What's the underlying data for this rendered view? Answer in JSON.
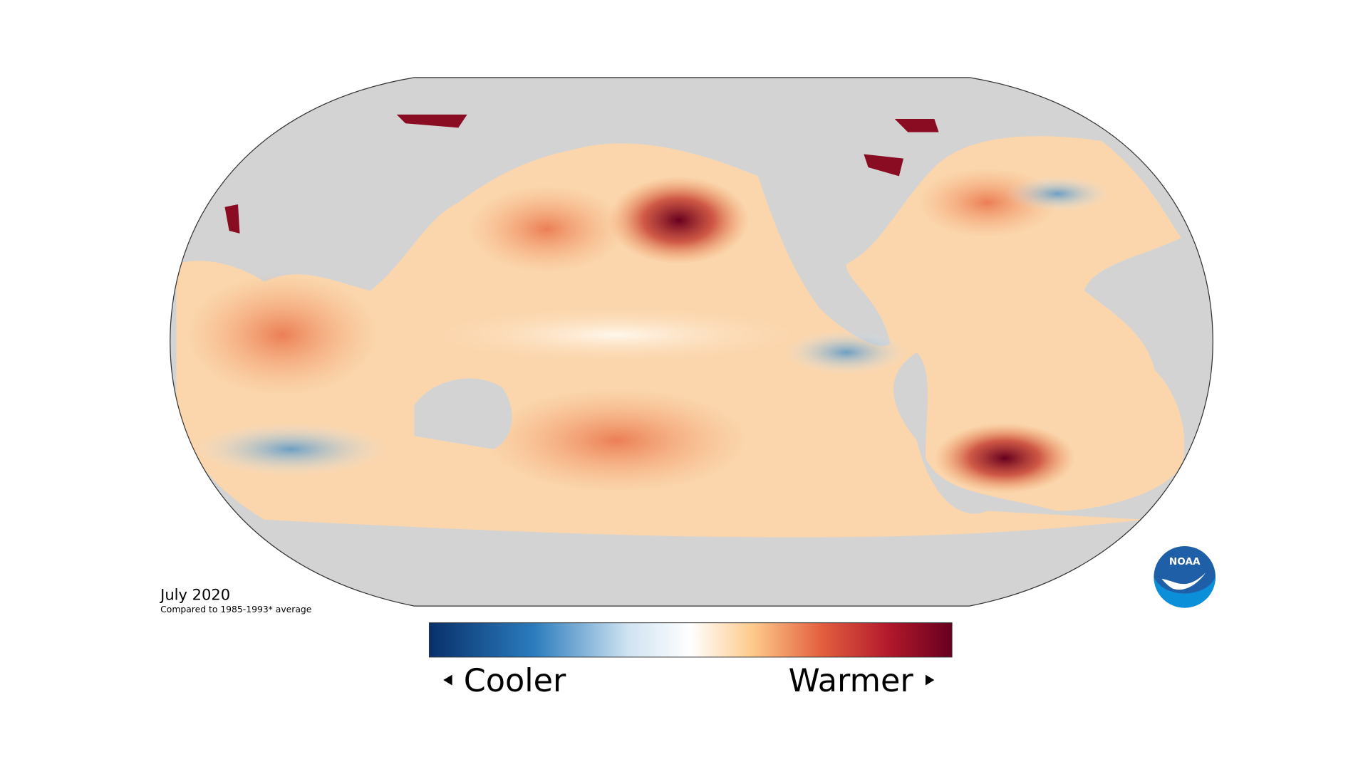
{
  "map": {
    "date": "July 2020",
    "note": "Compared to 1985-1993* average"
  },
  "legend": {
    "low": "Cooler",
    "high": "Warmer"
  },
  "logo": "NOAA"
}
